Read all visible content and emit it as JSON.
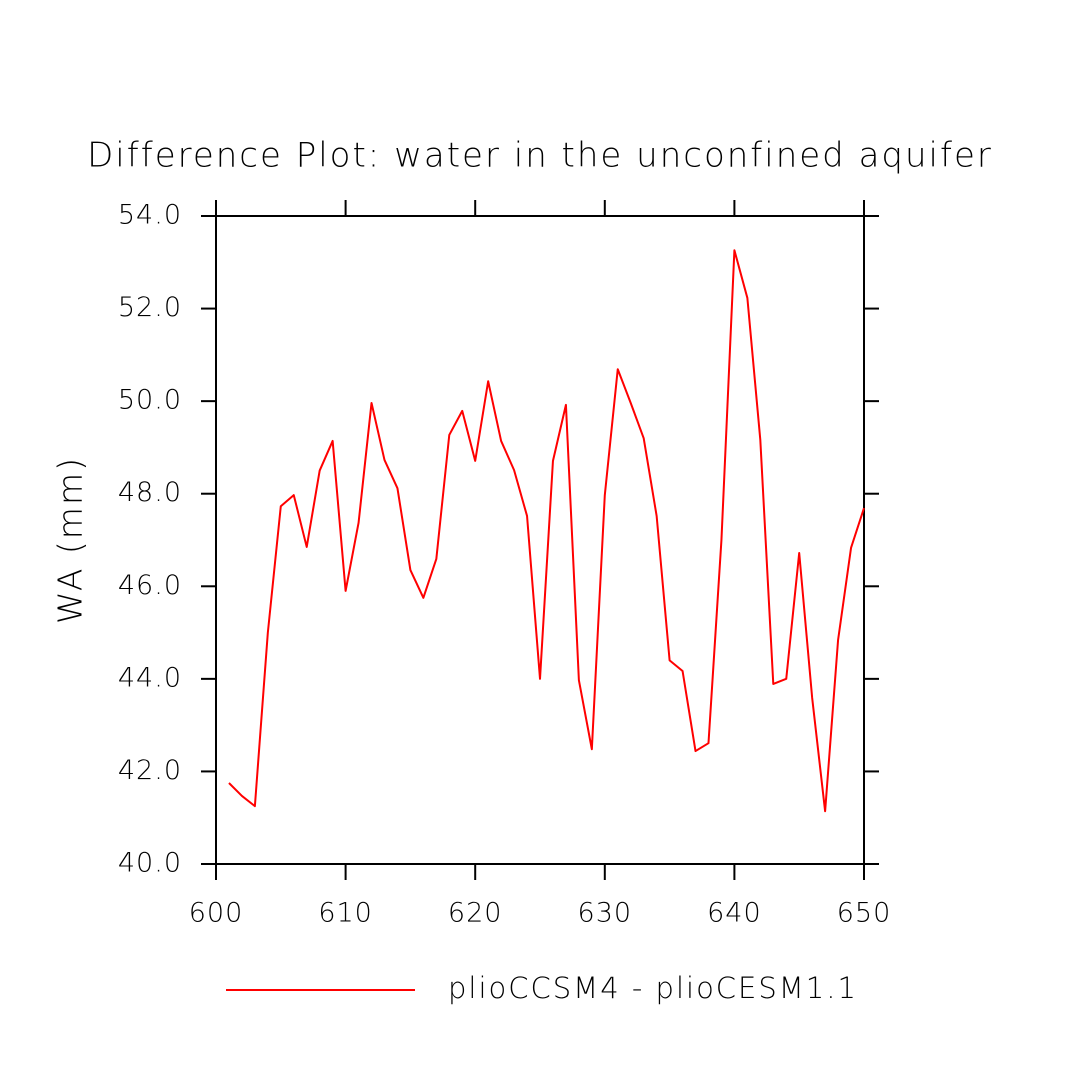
{
  "chart_data": {
    "type": "line",
    "title": "Difference Plot: water in the unconfined aquifer",
    "y_label": "WA  (mm)",
    "x": [
      601,
      602,
      603,
      604,
      605,
      606,
      607,
      608,
      609,
      610,
      611,
      612,
      613,
      614,
      615,
      616,
      617,
      618,
      619,
      620,
      621,
      622,
      623,
      624,
      625,
      626,
      627,
      628,
      629,
      630,
      631,
      632,
      633,
      634,
      635,
      636,
      637,
      638,
      639,
      640,
      641,
      642,
      643,
      644,
      645,
      646,
      647,
      648,
      649,
      650
    ],
    "series": [
      {
        "name": "plioCCSM4 - plioCESM1.1",
        "color": "#ff0000",
        "values": [
          41.75,
          41.47,
          41.25,
          45.0,
          47.73,
          47.97,
          46.85,
          48.5,
          49.14,
          45.9,
          47.37,
          49.96,
          48.73,
          48.12,
          46.35,
          45.75,
          46.59,
          49.27,
          49.79,
          48.71,
          50.43,
          49.14,
          48.51,
          47.52,
          44.0,
          48.71,
          49.92,
          43.97,
          42.48,
          47.97,
          50.69,
          49.96,
          49.2,
          47.52,
          44.4,
          44.17,
          42.44,
          42.61,
          47.0,
          53.26,
          52.23,
          49.16,
          43.89,
          44.0,
          46.72,
          43.59,
          41.14,
          44.84,
          46.83,
          47.69
        ]
      }
    ],
    "xlim": [
      600,
      650
    ],
    "xticks": [
      600,
      610,
      620,
      630,
      640,
      650
    ],
    "ylim": [
      40,
      54
    ],
    "yticks": [
      {
        "value": 40,
        "label": "40.0"
      },
      {
        "value": 42,
        "label": "42.0"
      },
      {
        "value": 44,
        "label": "44.0"
      },
      {
        "value": 46,
        "label": "46.0"
      },
      {
        "value": 48,
        "label": "48.0"
      },
      {
        "value": 50,
        "label": "50.0"
      },
      {
        "value": 52,
        "label": "52.0"
      },
      {
        "value": 54,
        "label": "54.0"
      }
    ],
    "legend": "bottom"
  }
}
